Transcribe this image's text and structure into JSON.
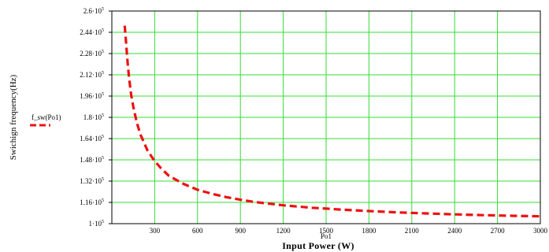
{
  "chart_data": {
    "type": "line",
    "title": "",
    "xlabel_var": "Po1",
    "xlabel": "Input Power (W)",
    "ylabel": "Swichign frequency(Hz)",
    "xlim": [
      0,
      3000
    ],
    "ylim": [
      100000,
      260000
    ],
    "grid": true,
    "legend_position": "left",
    "x_ticks": [
      300,
      600,
      900,
      1200,
      1500,
      1800,
      2100,
      2400,
      2700,
      3000
    ],
    "x_tick_labels": [
      "300",
      "600",
      "900",
      "1200",
      "1500",
      "1800",
      "2100",
      "2400",
      "2700",
      "3000"
    ],
    "y_ticks": [
      {
        "value": 100000,
        "mantissa": "1",
        "exp": "5"
      },
      {
        "value": 116000,
        "mantissa": "1.16",
        "exp": "5"
      },
      {
        "value": 132000,
        "mantissa": "1.32",
        "exp": "5"
      },
      {
        "value": 148000,
        "mantissa": "1.48",
        "exp": "5"
      },
      {
        "value": 164000,
        "mantissa": "1.64",
        "exp": "5"
      },
      {
        "value": 180000,
        "mantissa": "1.8",
        "exp": "5"
      },
      {
        "value": 196000,
        "mantissa": "1.96",
        "exp": "5"
      },
      {
        "value": 212000,
        "mantissa": "2.12",
        "exp": "5"
      },
      {
        "value": 228000,
        "mantissa": "2.28",
        "exp": "5"
      },
      {
        "value": 244000,
        "mantissa": "2.44",
        "exp": "5"
      },
      {
        "value": 260000,
        "mantissa": "2.6",
        "exp": "5"
      }
    ],
    "series": [
      {
        "name": "f_sw(Po1)",
        "color": "#ee1111",
        "style": "dashed",
        "x": [
          90,
          100,
          110,
          120,
          135,
          150,
          175,
          200,
          250,
          300,
          350,
          400,
          500,
          600,
          700,
          800,
          900,
          1000,
          1200,
          1400,
          1500,
          1600,
          1800,
          2000,
          2200,
          2400,
          2600,
          2800,
          3000
        ],
        "y": [
          249000,
          236000,
          222000,
          210000,
          197000,
          188000,
          176000,
          167000,
          155000,
          147000,
          141000,
          136000,
          130000,
          125500,
          122500,
          120000,
          118000,
          116300,
          113800,
          112000,
          111300,
          110600,
          109500,
          108500,
          107700,
          107000,
          106400,
          105900,
          105500
        ]
      }
    ]
  }
}
